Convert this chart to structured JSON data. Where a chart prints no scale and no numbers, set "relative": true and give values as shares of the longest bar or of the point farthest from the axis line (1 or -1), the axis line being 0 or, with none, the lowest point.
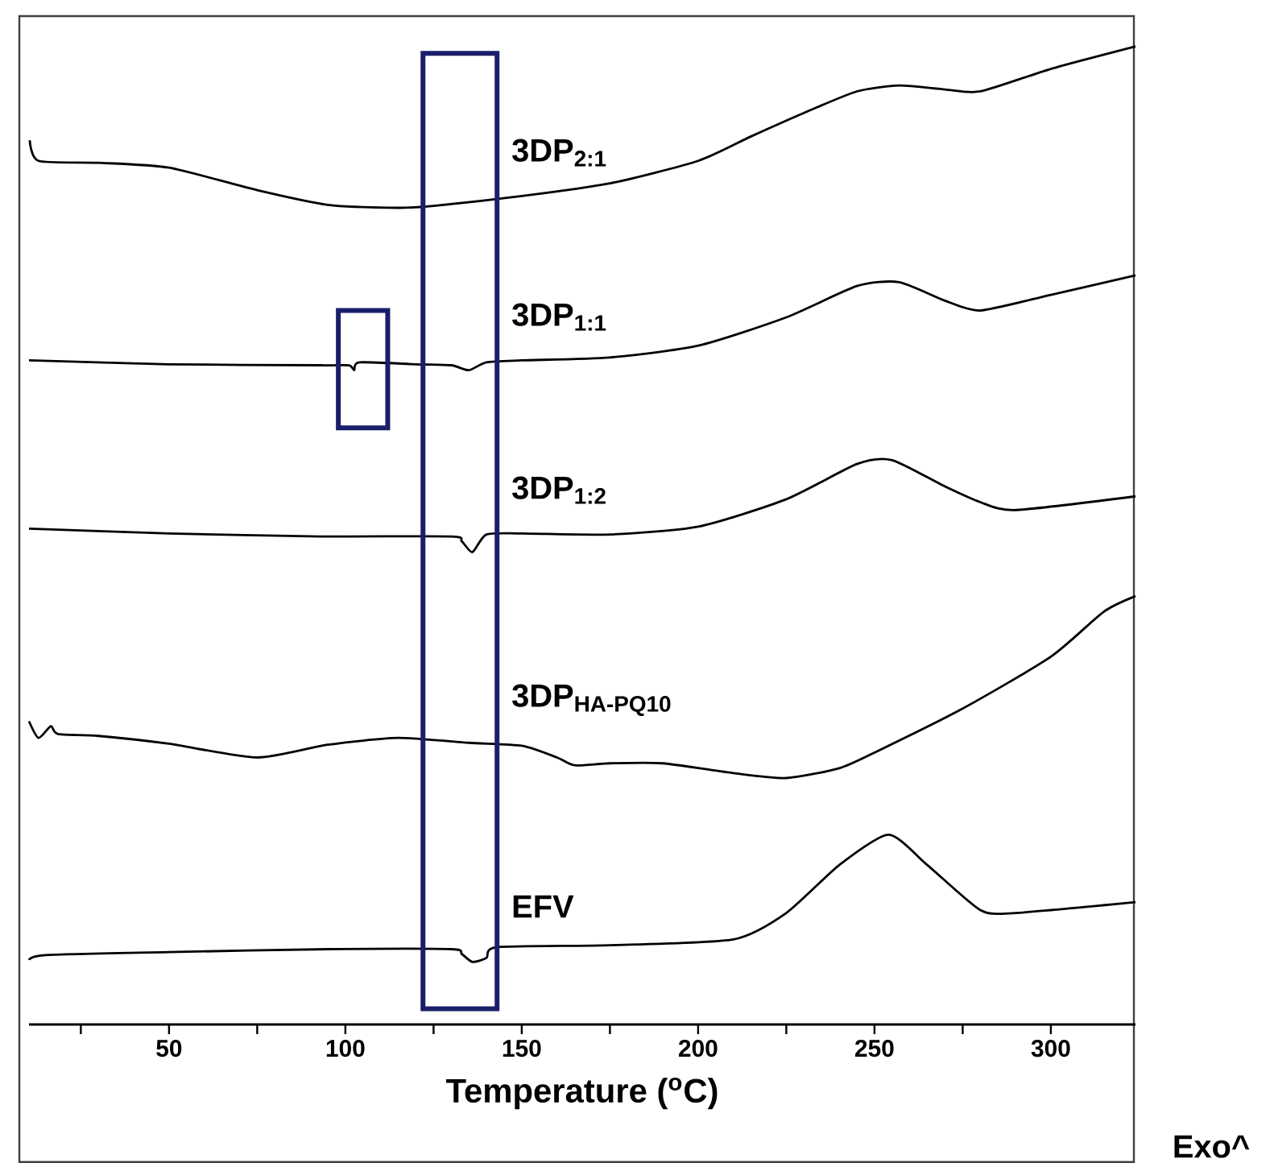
{
  "chart_data": {
    "type": "line",
    "relative": true,
    "xlabel": "Temperature ($^{o}$C)",
    "xlim": [
      10.3,
      324
    ],
    "xticks": [
      {
        "value": 25,
        "label": null
      },
      50,
      {
        "value": 75,
        "label": null
      },
      100,
      {
        "value": 125,
        "label": null
      },
      150,
      {
        "value": 175,
        "label": null
      },
      200,
      {
        "value": 225,
        "label": null
      },
      250,
      {
        "value": 275,
        "label": null
      },
      300
    ],
    "marker": "none",
    "line_style": "solid",
    "annotations": [
      "Exo^"
    ],
    "series": [
      {
        "name": "3DP$_{2:1}$",
        "color": "#000000",
        "x": [
          10.5,
          13,
          30,
          50,
          75,
          95,
          115,
          125,
          150,
          175,
          200,
          215,
          230,
          245,
          257,
          270,
          280,
          300,
          324
        ],
        "values": [
          0.904,
          0.883,
          0.881,
          0.876,
          0.853,
          0.838,
          0.835,
          0.837,
          0.847,
          0.86,
          0.883,
          0.908,
          0.932,
          0.954,
          0.96,
          0.956,
          0.954,
          0.977,
          1.0
        ]
      },
      {
        "name": "3DP$_{1:1}$",
        "color": "#000000",
        "x": [
          10.3,
          50,
          93,
          101,
          102.5,
          104,
          120,
          130,
          135,
          140,
          150,
          175,
          200,
          225,
          245,
          257,
          270,
          280,
          300,
          324
        ],
        "values": [
          0.679,
          0.675,
          0.674,
          0.674,
          0.669,
          0.677,
          0.675,
          0.674,
          0.669,
          0.677,
          0.679,
          0.682,
          0.694,
          0.723,
          0.755,
          0.759,
          0.74,
          0.73,
          0.746,
          0.766
        ]
      },
      {
        "name": "3DP$_{1:2}$",
        "color": "#000000",
        "x": [
          10.3,
          50,
          93,
          130,
          133,
          136,
          140,
          150,
          175,
          200,
          225,
          245,
          255,
          270,
          280,
          290,
          324
        ],
        "values": [
          0.507,
          0.502,
          0.499,
          0.499,
          0.494,
          0.483,
          0.501,
          0.502,
          0.501,
          0.509,
          0.537,
          0.573,
          0.577,
          0.55,
          0.534,
          0.526,
          0.54
        ]
      },
      {
        "name": "3DP$_{HA-PQ10}$",
        "color": "#000000",
        "x": [
          10.3,
          13,
          16.5,
          18.5,
          30,
          50,
          75,
          95,
          115,
          135,
          150,
          160,
          165,
          175,
          190,
          210,
          225,
          240,
          250,
          275,
          300,
          315,
          324
        ],
        "values": [
          0.31,
          0.293,
          0.305,
          0.297,
          0.295,
          0.287,
          0.273,
          0.286,
          0.293,
          0.288,
          0.285,
          0.273,
          0.265,
          0.267,
          0.267,
          0.257,
          0.252,
          0.262,
          0.278,
          0.323,
          0.376,
          0.422,
          0.438
        ]
      },
      {
        "name": "EFV",
        "color": "#000000",
        "x": [
          10.3,
          15,
          50,
          95,
          130,
          133,
          136,
          140,
          143,
          175,
          210,
          225,
          240,
          254,
          265,
          280,
          290,
          324
        ],
        "values": [
          0.066,
          0.071,
          0.074,
          0.077,
          0.077,
          0.072,
          0.064,
          0.068,
          0.079,
          0.081,
          0.087,
          0.114,
          0.163,
          0.194,
          0.163,
          0.117,
          0.114,
          0.125
        ]
      }
    ]
  }
}
